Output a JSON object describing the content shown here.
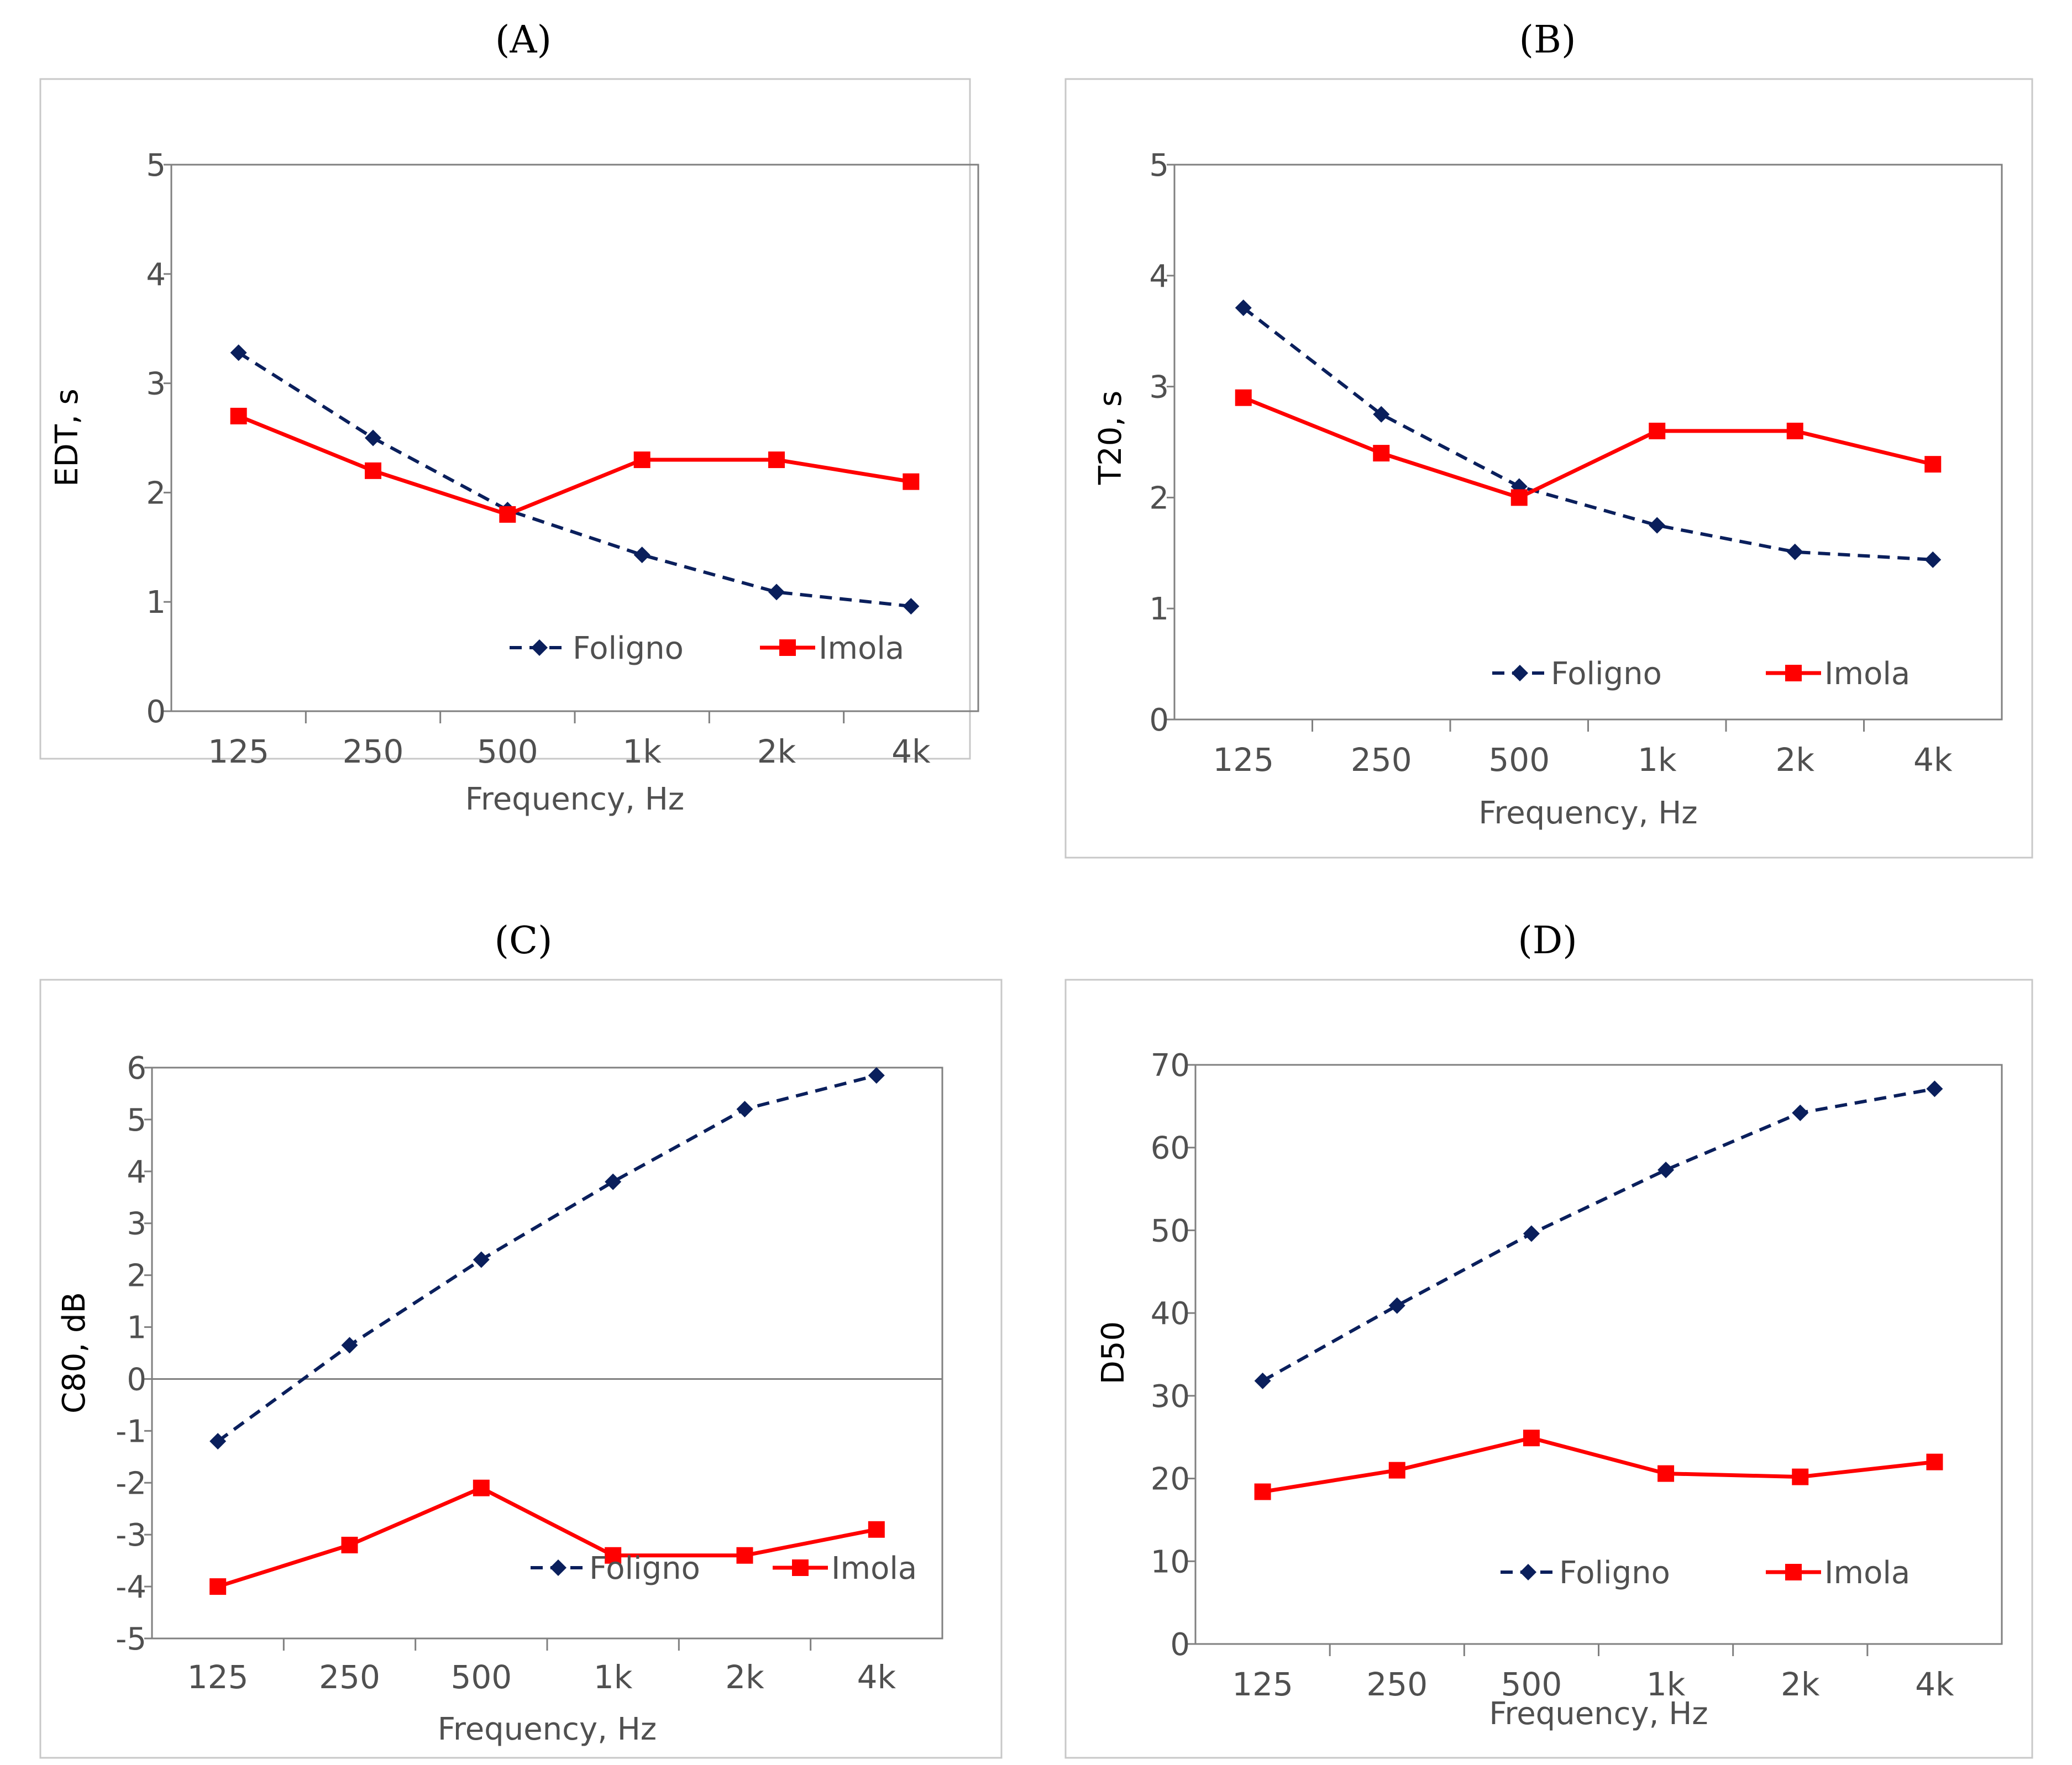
{
  "colors": {
    "foligno": "#0a1f5c",
    "imola": "#ff0000",
    "frame": "#c8c8c8",
    "axis": "#808080",
    "text": "#505050"
  },
  "chart_data": [
    {
      "panel": "(A)",
      "type": "line",
      "xlabel": "Frequency, Hz",
      "ylabel": "EDT, s",
      "categories": [
        "125",
        "250",
        "500",
        "1k",
        "2k",
        "4k"
      ],
      "yticks": [
        "0",
        "1",
        "2",
        "3",
        "4",
        "5"
      ],
      "ylim": [
        0,
        5
      ],
      "grid": false,
      "legend_position": "bottom-right",
      "series": [
        {
          "name": "Foligno",
          "style": "dashed",
          "marker": "diamond",
          "values": [
            3.28,
            2.5,
            1.84,
            1.43,
            1.09,
            0.96
          ]
        },
        {
          "name": "Imola",
          "style": "solid",
          "marker": "square",
          "values": [
            2.7,
            2.2,
            1.8,
            2.3,
            2.3,
            2.1
          ]
        }
      ]
    },
    {
      "panel": "(B)",
      "type": "line",
      "xlabel": "Frequency, Hz",
      "ylabel": "T20, s",
      "categories": [
        "125",
        "250",
        "500",
        "1k",
        "2k",
        "4k"
      ],
      "yticks": [
        "0",
        "1",
        "2",
        "3",
        "4",
        "5"
      ],
      "ylim": [
        0,
        5
      ],
      "grid": false,
      "legend_position": "bottom-right",
      "series": [
        {
          "name": "Foligno",
          "style": "dashed",
          "marker": "diamond",
          "values": [
            3.71,
            2.75,
            2.1,
            1.75,
            1.51,
            1.44
          ]
        },
        {
          "name": "Imola",
          "style": "solid",
          "marker": "square",
          "values": [
            2.9,
            2.4,
            2.0,
            2.6,
            2.6,
            2.3
          ]
        }
      ]
    },
    {
      "panel": "(C)",
      "type": "line",
      "xlabel": "Frequency, Hz",
      "ylabel": "C80, dB",
      "categories": [
        "125",
        "250",
        "500",
        "1k",
        "2k",
        "4k"
      ],
      "yticks": [
        "-5",
        "-4",
        "-3",
        "-2",
        "-1",
        "0",
        "1",
        "2",
        "3",
        "4",
        "5",
        "6"
      ],
      "ylim": [
        -5,
        6
      ],
      "grid": false,
      "legend_position": "bottom-right",
      "series": [
        {
          "name": "Foligno",
          "style": "dashed",
          "marker": "diamond",
          "values": [
            -1.2,
            0.65,
            2.3,
            3.8,
            5.2,
            5.85
          ]
        },
        {
          "name": "Imola",
          "style": "solid",
          "marker": "square",
          "values": [
            -4.0,
            -3.2,
            -2.1,
            -3.4,
            -3.4,
            -2.9
          ]
        }
      ]
    },
    {
      "panel": "(D)",
      "type": "line",
      "xlabel": "Frequency, Hz",
      "ylabel": "D50",
      "categories": [
        "125",
        "250",
        "500",
        "1k",
        "2k",
        "4k"
      ],
      "yticks": [
        "0",
        "10",
        "20",
        "30",
        "40",
        "50",
        "60",
        "70"
      ],
      "ylim": [
        0,
        70
      ],
      "grid": false,
      "legend_position": "bottom-right",
      "series": [
        {
          "name": "Foligno",
          "style": "dashed",
          "marker": "diamond",
          "values": [
            31.8,
            40.9,
            49.6,
            57.3,
            64.2,
            67.1
          ]
        },
        {
          "name": "Imola",
          "style": "solid",
          "marker": "square",
          "values": [
            18.4,
            21.0,
            24.9,
            20.6,
            20.2,
            22.0
          ]
        }
      ]
    }
  ]
}
